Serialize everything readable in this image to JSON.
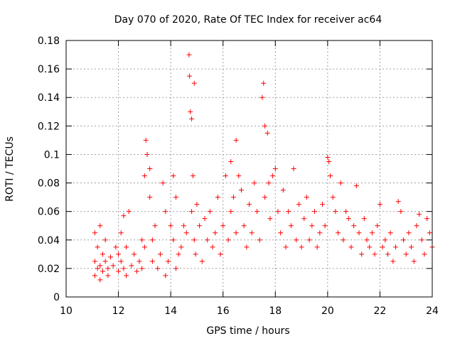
{
  "chart_data": {
    "type": "scatter",
    "title": "Day 070 of 2020, Rate Of TEC Index for receiver ac64",
    "xlabel": "GPS time / hours",
    "ylabel": "ROTI / TECUs",
    "xlim": [
      10,
      24
    ],
    "ylim": [
      0,
      0.18
    ],
    "xticks": [
      "10",
      "12",
      "14",
      "16",
      "18",
      "20",
      "22",
      "24"
    ],
    "yticks": [
      "0",
      "0.02",
      "0.04",
      "0.06",
      "0.08",
      "0.1",
      "0.12",
      "0.14",
      "0.16",
      "0.18"
    ],
    "grid": true,
    "marker": "+",
    "series": [
      {
        "name": "ROTI",
        "color": "#ff0000",
        "x": [
          11.1,
          11.1,
          11.1,
          11.2,
          11.2,
          11.3,
          11.3,
          11.3,
          11.4,
          11.4,
          11.5,
          11.5,
          11.6,
          11.6,
          11.7,
          11.8,
          11.9,
          12.0,
          12.0,
          12.1,
          12.1,
          12.2,
          12.2,
          12.3,
          12.3,
          12.4,
          12.5,
          12.6,
          12.7,
          12.8,
          12.9,
          12.9,
          13.0,
          13.0,
          13.05,
          13.1,
          13.2,
          13.2,
          13.3,
          13.3,
          13.4,
          13.5,
          13.6,
          13.7,
          13.8,
          13.8,
          13.9,
          14.0,
          14.1,
          14.1,
          14.2,
          14.2,
          14.3,
          14.4,
          14.5,
          14.6,
          14.7,
          14.72,
          14.75,
          14.8,
          14.8,
          14.85,
          14.9,
          14.9,
          14.95,
          15.0,
          15.1,
          15.2,
          15.3,
          15.4,
          15.5,
          15.6,
          15.7,
          15.8,
          15.9,
          16.0,
          16.1,
          16.2,
          16.3,
          16.3,
          16.4,
          16.5,
          16.5,
          16.6,
          16.7,
          16.8,
          16.9,
          17.0,
          17.1,
          17.2,
          17.3,
          17.4,
          17.5,
          17.55,
          17.6,
          17.6,
          17.7,
          17.75,
          17.8,
          17.9,
          18.0,
          18.1,
          18.2,
          18.3,
          18.4,
          18.5,
          18.6,
          18.7,
          18.8,
          18.9,
          19.0,
          19.1,
          19.2,
          19.3,
          19.4,
          19.5,
          19.6,
          19.7,
          19.8,
          19.9,
          20.0,
          20.05,
          20.1,
          20.2,
          20.3,
          20.4,
          20.5,
          20.6,
          20.7,
          20.8,
          20.9,
          21.0,
          21.1,
          21.2,
          21.3,
          21.4,
          21.5,
          21.6,
          21.7,
          21.8,
          21.9,
          22.0,
          22.1,
          22.2,
          22.3,
          22.4,
          22.5,
          22.6,
          22.7,
          22.8,
          22.9,
          23.0,
          23.1,
          23.2,
          23.3,
          23.4,
          23.5,
          23.6,
          23.7,
          23.8,
          23.9,
          24.0
        ],
        "y": [
          0.025,
          0.015,
          0.045,
          0.02,
          0.035,
          0.022,
          0.05,
          0.012,
          0.03,
          0.018,
          0.025,
          0.04,
          0.02,
          0.015,
          0.028,
          0.022,
          0.035,
          0.018,
          0.03,
          0.045,
          0.025,
          0.057,
          0.02,
          0.035,
          0.015,
          0.06,
          0.022,
          0.03,
          0.018,
          0.025,
          0.04,
          0.02,
          0.085,
          0.035,
          0.11,
          0.1,
          0.09,
          0.07,
          0.025,
          0.04,
          0.05,
          0.02,
          0.03,
          0.08,
          0.06,
          0.015,
          0.025,
          0.05,
          0.085,
          0.04,
          0.07,
          0.02,
          0.03,
          0.035,
          0.05,
          0.045,
          0.17,
          0.155,
          0.13,
          0.125,
          0.06,
          0.085,
          0.15,
          0.04,
          0.03,
          0.065,
          0.05,
          0.025,
          0.055,
          0.04,
          0.06,
          0.035,
          0.045,
          0.07,
          0.03,
          0.05,
          0.085,
          0.04,
          0.095,
          0.06,
          0.07,
          0.11,
          0.045,
          0.085,
          0.075,
          0.05,
          0.035,
          0.065,
          0.045,
          0.08,
          0.06,
          0.04,
          0.14,
          0.15,
          0.12,
          0.07,
          0.115,
          0.08,
          0.055,
          0.085,
          0.09,
          0.06,
          0.045,
          0.075,
          0.035,
          0.06,
          0.05,
          0.09,
          0.04,
          0.065,
          0.035,
          0.055,
          0.07,
          0.04,
          0.05,
          0.06,
          0.035,
          0.045,
          0.065,
          0.05,
          0.098,
          0.095,
          0.085,
          0.07,
          0.06,
          0.045,
          0.08,
          0.04,
          0.06,
          0.055,
          0.035,
          0.05,
          0.078,
          0.045,
          0.03,
          0.055,
          0.04,
          0.035,
          0.045,
          0.03,
          0.05,
          0.065,
          0.035,
          0.04,
          0.03,
          0.045,
          0.025,
          0.035,
          0.067,
          0.06,
          0.04,
          0.03,
          0.045,
          0.035,
          0.025,
          0.05,
          0.058,
          0.04,
          0.03,
          0.055,
          0.045,
          0.035
        ]
      }
    ]
  }
}
